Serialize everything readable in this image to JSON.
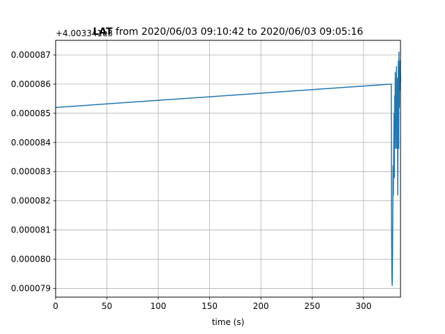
{
  "chart_data": {
    "type": "line",
    "title_bold": "LAT",
    "title_rest": " from 2020/06/03 09:10:42 to 2020/06/03 09:05:16",
    "xlabel": "time (s)",
    "ylabel": "",
    "y_offset_label": "+4.003341e3",
    "xlim": [
      0,
      336
    ],
    "ylim": [
      7.87e-05,
      8.75e-05
    ],
    "x_ticks": [
      0,
      50,
      100,
      150,
      200,
      250,
      300
    ],
    "x_tick_labels": [
      "0",
      "50",
      "100",
      "150",
      "200",
      "250",
      "300"
    ],
    "y_ticks": [
      7.9e-05,
      8e-05,
      8.1e-05,
      8.2e-05,
      8.3e-05,
      8.4e-05,
      8.5e-05,
      8.6e-05,
      8.7e-05
    ],
    "y_tick_labels": [
      "0.000079",
      "0.000080",
      "0.000081",
      "0.000082",
      "0.000083",
      "0.000084",
      "0.000085",
      "0.000086",
      "0.000087"
    ],
    "grid": true,
    "series_color": "#1f77b4",
    "series": [
      {
        "x": [
          0,
          327,
          327.3,
          327.6,
          327.9,
          328.2,
          328.5,
          328.8,
          329.1,
          329.4,
          329.7,
          330.0,
          330.3,
          330.6,
          330.9,
          331.2,
          331.5,
          331.8,
          332.1,
          332.4,
          332.7,
          333.0,
          333.3,
          333.6,
          333.9,
          334.2,
          334.5,
          334.8,
          335.1,
          335.4,
          335.7,
          336
        ],
        "y": [
          8.52e-05,
          8.6e-05,
          8.1e-05,
          7.94e-05,
          7.91e-05,
          8e-05,
          8.15e-05,
          8.32e-05,
          8.22e-05,
          8.38e-05,
          8.5e-05,
          8.28e-05,
          8.56e-05,
          8.42e-05,
          8.64e-05,
          8.38e-05,
          8.6e-05,
          8.48e-05,
          8.66e-05,
          8.38e-05,
          8.5e-05,
          8.62e-05,
          8.22e-05,
          8.46e-05,
          8.68e-05,
          8.38e-05,
          8.71e-05,
          8.52e-05,
          8.66e-05,
          8.58e-05,
          8.68e-05,
          8.61e-05
        ]
      }
    ]
  }
}
